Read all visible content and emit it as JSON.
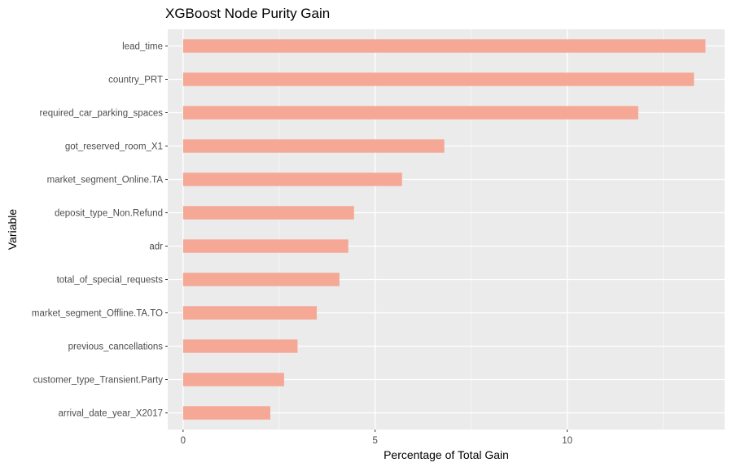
{
  "chart_data": {
    "type": "bar",
    "orientation": "horizontal",
    "title": "XGBoost Node Purity Gain",
    "xlabel": "Percentage of Total Gain",
    "ylabel": "Variable",
    "categories": [
      "lead_time",
      "country_PRT",
      "required_car_parking_spaces",
      "got_reserved_room_X1",
      "market_segment_Online.TA",
      "deposit_type_Non.Refund",
      "adr",
      "total_of_special_requests",
      "market_segment_Offline.TA.TO",
      "previous_cancellations",
      "customer_type_Transient.Party",
      "arrival_date_year_X2017"
    ],
    "values": [
      13.6,
      13.3,
      11.85,
      6.8,
      5.7,
      4.45,
      4.3,
      4.07,
      3.48,
      2.98,
      2.63,
      2.27
    ],
    "xlim": [
      -0.4,
      14.1
    ],
    "xticks": [
      0,
      5,
      10
    ],
    "xtick_labels": [
      "0",
      "5",
      "10"
    ],
    "grid": true,
    "legend": "none",
    "colors": {
      "bar": "#F4A895",
      "panel": "#EBEBEB",
      "grid_major": "#FFFFFF",
      "grid_minor": "#F5F5F5",
      "tick_text": "#4D4D4D",
      "tick_mark": "#333333",
      "text": "#000000"
    }
  }
}
